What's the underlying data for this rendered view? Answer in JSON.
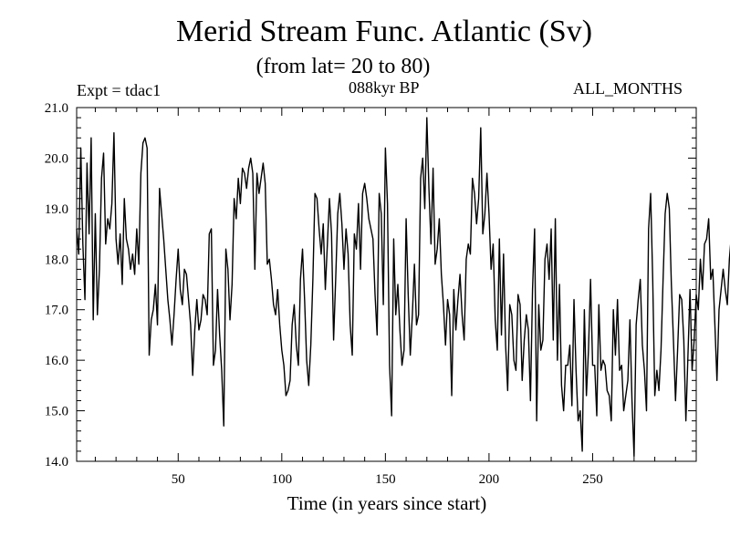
{
  "chart_data": {
    "type": "line",
    "title": "Merid Stream Func. Atlantic (Sv)",
    "subtitle": "(from lat= 20 to 80)",
    "annotations": {
      "left": "Expt = tdac1",
      "center": "088kyr BP",
      "right": "ALL_MONTHS"
    },
    "xlabel": "Time (in years since start)",
    "ylabel": "",
    "xlim": [
      1,
      300
    ],
    "ylim": [
      14.0,
      21.0
    ],
    "xticks": [
      50,
      100,
      150,
      200,
      250
    ],
    "xtick_labels": [
      "50",
      "100",
      "150",
      "200",
      "250"
    ],
    "yticks": [
      14.0,
      15.0,
      16.0,
      17.0,
      18.0,
      19.0,
      20.0,
      21.0
    ],
    "ytick_labels": [
      "14.0",
      "15.0",
      "16.0",
      "17.0",
      "18.0",
      "19.0",
      "20.0",
      "21.0"
    ],
    "series": [
      {
        "name": "Merid Stream Func. Atlantic",
        "x_start": 1,
        "x_step": 1,
        "values": [
          18.6,
          18.1,
          20.2,
          18.3,
          17.2,
          19.9,
          18.5,
          20.4,
          16.8,
          18.9,
          16.9,
          17.8,
          19.6,
          20.1,
          18.3,
          18.8,
          18.6,
          19.1,
          20.5,
          18.4,
          17.9,
          18.5,
          17.5,
          19.2,
          18.4,
          18.2,
          17.8,
          18.1,
          17.7,
          18.6,
          17.9,
          19.7,
          20.3,
          20.4,
          20.2,
          16.1,
          16.8,
          17.0,
          17.5,
          16.7,
          19.4,
          18.9,
          18.4,
          17.8,
          17.2,
          16.8,
          16.3,
          16.9,
          17.6,
          18.2,
          17.4,
          17.1,
          17.8,
          17.7,
          17.2,
          16.7,
          15.7,
          16.6,
          17.2,
          16.6,
          16.8,
          17.3,
          17.2,
          16.9,
          18.5,
          18.6,
          15.9,
          16.2,
          17.4,
          16.5,
          15.8,
          14.7,
          18.2,
          17.8,
          16.8,
          17.5,
          19.2,
          18.8,
          19.6,
          19.1,
          19.8,
          19.7,
          19.4,
          19.8,
          20.0,
          19.7,
          17.8,
          19.7,
          19.3,
          19.6,
          19.9,
          19.5,
          17.9,
          18.0,
          17.6,
          17.1,
          16.9,
          17.4,
          16.7,
          16.2,
          15.9,
          15.3,
          15.4,
          15.6,
          16.7,
          17.1,
          16.3,
          15.9,
          17.6,
          18.2,
          17.2,
          16.0,
          15.5,
          16.3,
          17.6,
          19.3,
          19.2,
          18.6,
          18.1,
          18.7,
          17.4,
          18.3,
          19.2,
          18.5,
          16.4,
          17.6,
          18.9,
          19.3,
          18.7,
          17.8,
          18.6,
          18.1,
          16.7,
          16.1,
          18.5,
          18.2,
          19.1,
          17.8,
          19.3,
          19.5,
          19.2,
          18.8,
          18.6,
          18.4,
          17.3,
          16.5,
          19.3,
          18.9,
          17.1,
          20.2,
          19.1,
          15.9,
          14.9,
          18.4,
          16.9,
          17.5,
          16.6,
          15.9,
          16.2,
          18.8,
          17.3,
          16.1,
          16.9,
          17.9,
          16.7,
          16.9,
          19.6,
          20.0,
          19.0,
          20.8,
          19.4,
          18.3,
          19.8,
          17.9,
          18.2,
          18.8,
          17.7,
          17.1,
          16.3,
          17.2,
          16.9,
          15.3,
          17.4,
          16.6,
          17.2,
          17.7,
          16.9,
          16.4,
          18.0,
          18.3,
          18.1,
          19.6,
          19.3,
          18.7,
          19.2,
          20.6,
          18.5,
          18.9,
          19.7,
          18.9,
          17.8,
          18.3,
          16.8,
          16.2,
          18.4,
          16.5,
          18.1,
          16.3,
          15.4,
          17.1,
          16.9,
          16.0,
          15.8,
          17.3,
          17.1,
          15.6,
          16.4,
          16.9,
          16.6,
          15.2,
          17.4,
          18.6,
          14.8,
          17.1,
          16.2,
          16.4,
          18.0,
          18.3,
          17.6,
          18.6,
          16.4,
          18.8,
          16.0,
          17.5,
          15.5,
          15.0,
          15.9,
          15.9,
          16.3,
          15.1,
          17.2,
          15.8,
          14.8,
          15.0,
          14.2,
          17.0,
          15.3,
          16.2,
          17.6,
          15.9,
          15.9,
          14.9,
          17.1,
          15.8,
          16.0,
          15.9,
          15.4,
          15.3,
          14.8,
          17.0,
          16.1,
          17.2,
          15.8,
          15.9,
          15.0,
          15.3,
          15.6,
          16.8,
          15.2,
          14.1,
          16.7,
          17.2,
          17.6,
          16.3,
          15.8,
          15.0,
          18.6,
          19.3,
          17.6,
          15.3,
          15.8,
          15.4,
          16.2,
          17.6,
          18.9,
          19.3,
          19.0,
          17.5,
          16.4,
          15.2,
          16.2,
          17.3,
          17.2,
          16.4,
          14.8,
          16.1,
          17.4,
          15.8,
          16.4,
          17.3,
          17.0,
          18.0,
          17.4,
          18.3,
          18.4,
          18.8,
          17.6,
          17.8,
          16.7,
          15.6,
          17.0,
          17.4,
          17.8,
          17.4,
          17.1,
          18.0,
          18.5,
          17.8
        ]
      }
    ]
  }
}
